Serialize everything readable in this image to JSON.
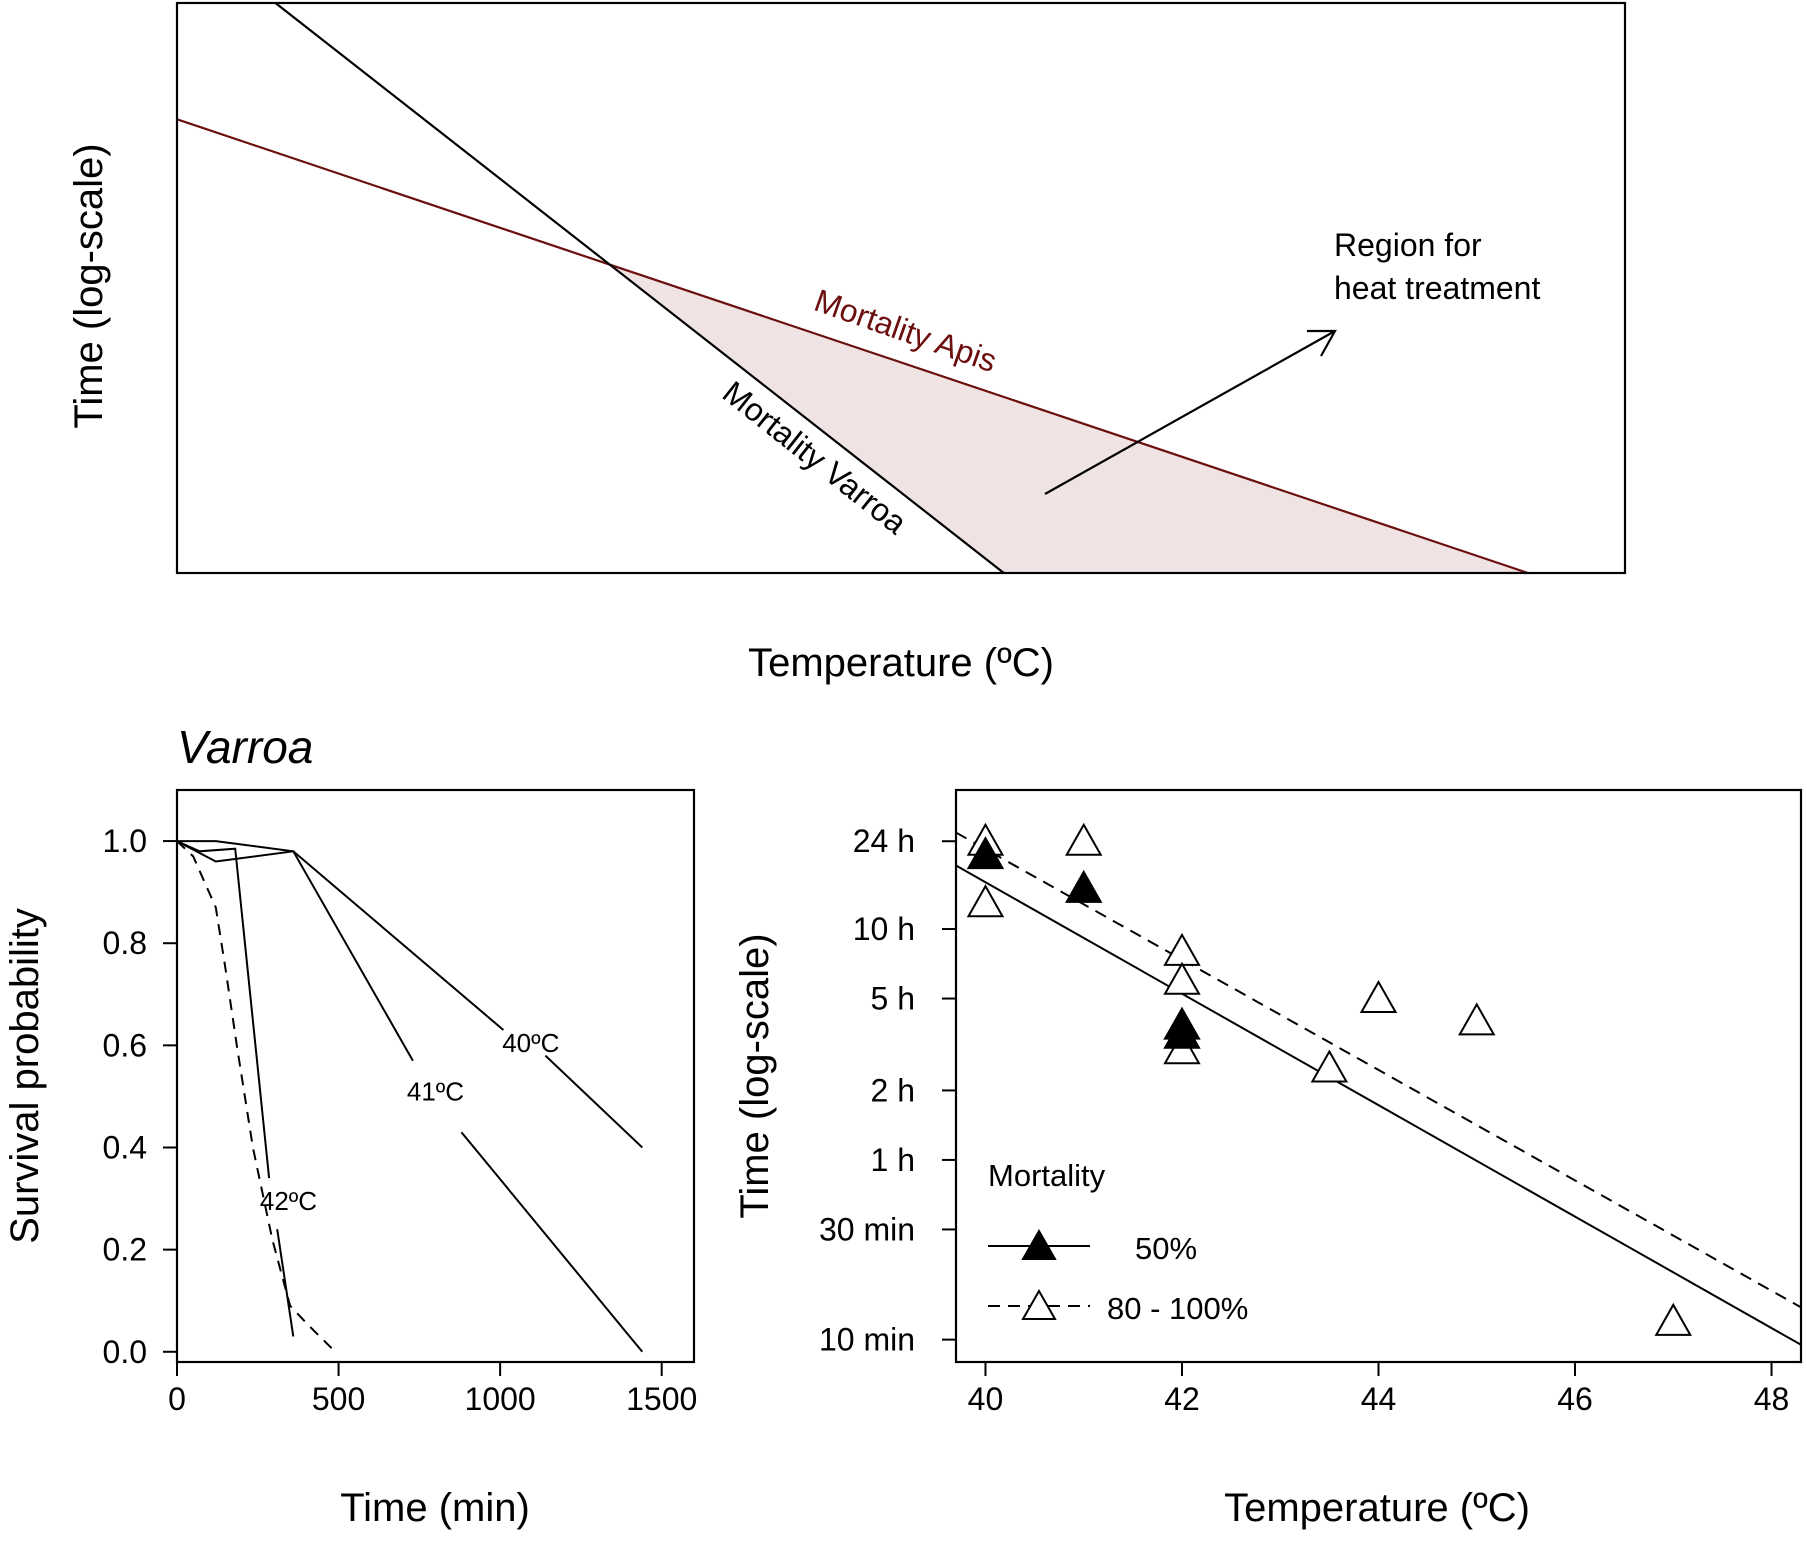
{
  "colors": {
    "apis": "#6b0f0f",
    "varroa": "#000000",
    "region_fill": "#f0e3e3"
  },
  "chart_data": [
    {
      "type": "line",
      "panel": "concept",
      "title": "",
      "xlabel": "Temperature (ºC)",
      "ylabel": "Time (log-scale)",
      "xlim": [
        0,
        1
      ],
      "ylim": [
        0,
        1
      ],
      "axes_ticks": false,
      "series": [
        {
          "name": "Mortality Apis",
          "x": [
            0.0,
            0.933
          ],
          "y": [
            0.796,
            0.0
          ]
        },
        {
          "name": "Mortality Varroa",
          "x": [
            0.068,
            0.571
          ],
          "y": [
            1.0,
            0.0
          ]
        }
      ],
      "annotations": {
        "region_label_line1": "Region for",
        "region_label_line2": "heat treatment",
        "apis_label": "Mortality Apis",
        "varroa_label": "Mortality Varroa"
      }
    },
    {
      "type": "line",
      "panel": "survival",
      "title": "Varroa",
      "xlabel": "Time (min)",
      "ylabel": "Survival probability",
      "xlim": [
        0,
        1600
      ],
      "ylim": [
        -0.02,
        1.1
      ],
      "xticks": [
        0,
        500,
        1000,
        1500
      ],
      "xtick_labels": [
        "0",
        "500",
        "1000",
        "1500"
      ],
      "yticks": [
        0.0,
        0.2,
        0.4,
        0.6,
        0.8,
        1.0
      ],
      "ytick_labels": [
        "0.0",
        "0.2",
        "0.4",
        "0.6",
        "0.8",
        "1.0"
      ],
      "series": [
        {
          "name": "40ºC",
          "label": "40ºC",
          "style": "solid",
          "segments": [
            [
              [
                0,
                1.0
              ],
              [
                120,
                1.0
              ],
              [
                360,
                0.98
              ],
              [
                1010,
                0.63
              ]
            ],
            [
              [
                1140,
                0.58
              ],
              [
                1440,
                0.4
              ]
            ]
          ],
          "label_at": [
            1095,
            0.605
          ]
        },
        {
          "name": "41ºC",
          "label": "41ºC",
          "style": "solid",
          "segments": [
            [
              [
                0,
                1.0
              ],
              [
                120,
                0.96
              ],
              [
                360,
                0.98
              ],
              [
                730,
                0.57
              ]
            ],
            [
              [
                880,
                0.43
              ],
              [
                1440,
                0.0
              ]
            ]
          ],
          "label_at": [
            800,
            0.51
          ]
        },
        {
          "name": "42ºC",
          "label": "42ºC",
          "style": "solid",
          "segments": [
            [
              [
                0,
                1.0
              ],
              [
                70,
                0.98
              ],
              [
                180,
                0.985
              ],
              [
                285,
                0.34
              ]
            ],
            [
              [
                310,
                0.24
              ],
              [
                360,
                0.03
              ]
            ]
          ],
          "label_at": [
            345,
            0.295
          ]
        },
        {
          "name": "42ºC dashed",
          "style": "dashed",
          "segments": [
            [
              [
                0,
                1.0
              ],
              [
                50,
                0.97
              ],
              [
                120,
                0.87
              ],
              [
                150,
                0.75
              ],
              [
                185,
                0.6
              ],
              [
                235,
                0.4
              ],
              [
                295,
                0.22
              ],
              [
                350,
                0.09
              ],
              [
                410,
                0.05
              ],
              [
                490,
                0.0
              ]
            ]
          ]
        }
      ]
    },
    {
      "type": "scatter",
      "panel": "mortality",
      "title": "",
      "xlabel": "Temperature (ºC)",
      "ylabel": "Time (log-scale)",
      "xlim": [
        39.7,
        48.3
      ],
      "ylim_minutes": [
        8,
        2400
      ],
      "xticks": [
        40,
        42,
        44,
        46,
        48
      ],
      "xtick_labels": [
        "40",
        "42",
        "44",
        "46",
        "48"
      ],
      "yticks_minutes": [
        10,
        30,
        60,
        120,
        300,
        600,
        1440
      ],
      "ytick_labels": [
        "10 min",
        "30 min",
        "1 h",
        "2 h",
        "5 h",
        "10 h",
        "24 h"
      ],
      "series": [
        {
          "name": "50%",
          "marker": "filled-triangle",
          "line": "solid",
          "points": [
            [
              40,
              1260
            ],
            [
              41,
              900
            ],
            [
              42,
              230
            ],
            [
              42,
              210
            ]
          ],
          "fit": [
            [
              39.7,
              1130
            ],
            [
              48.3,
              9.5
            ]
          ]
        },
        {
          "name": "80 - 100%",
          "marker": "open-triangle",
          "line": "dashed",
          "points": [
            [
              40,
              1440
            ],
            [
              40,
              780
            ],
            [
              41,
              1440
            ],
            [
              42,
              480
            ],
            [
              42,
              360
            ],
            [
              42,
              180
            ],
            [
              43.5,
              150
            ],
            [
              44,
              300
            ],
            [
              45,
              240
            ],
            [
              47,
              12
            ]
          ],
          "fit": [
            [
              39.7,
              1570
            ],
            [
              48.3,
              13.8
            ]
          ]
        }
      ],
      "legend": {
        "title": "Mortality",
        "entries": [
          "50%",
          "80 - 100%"
        ],
        "position": "bottom-left"
      }
    }
  ]
}
